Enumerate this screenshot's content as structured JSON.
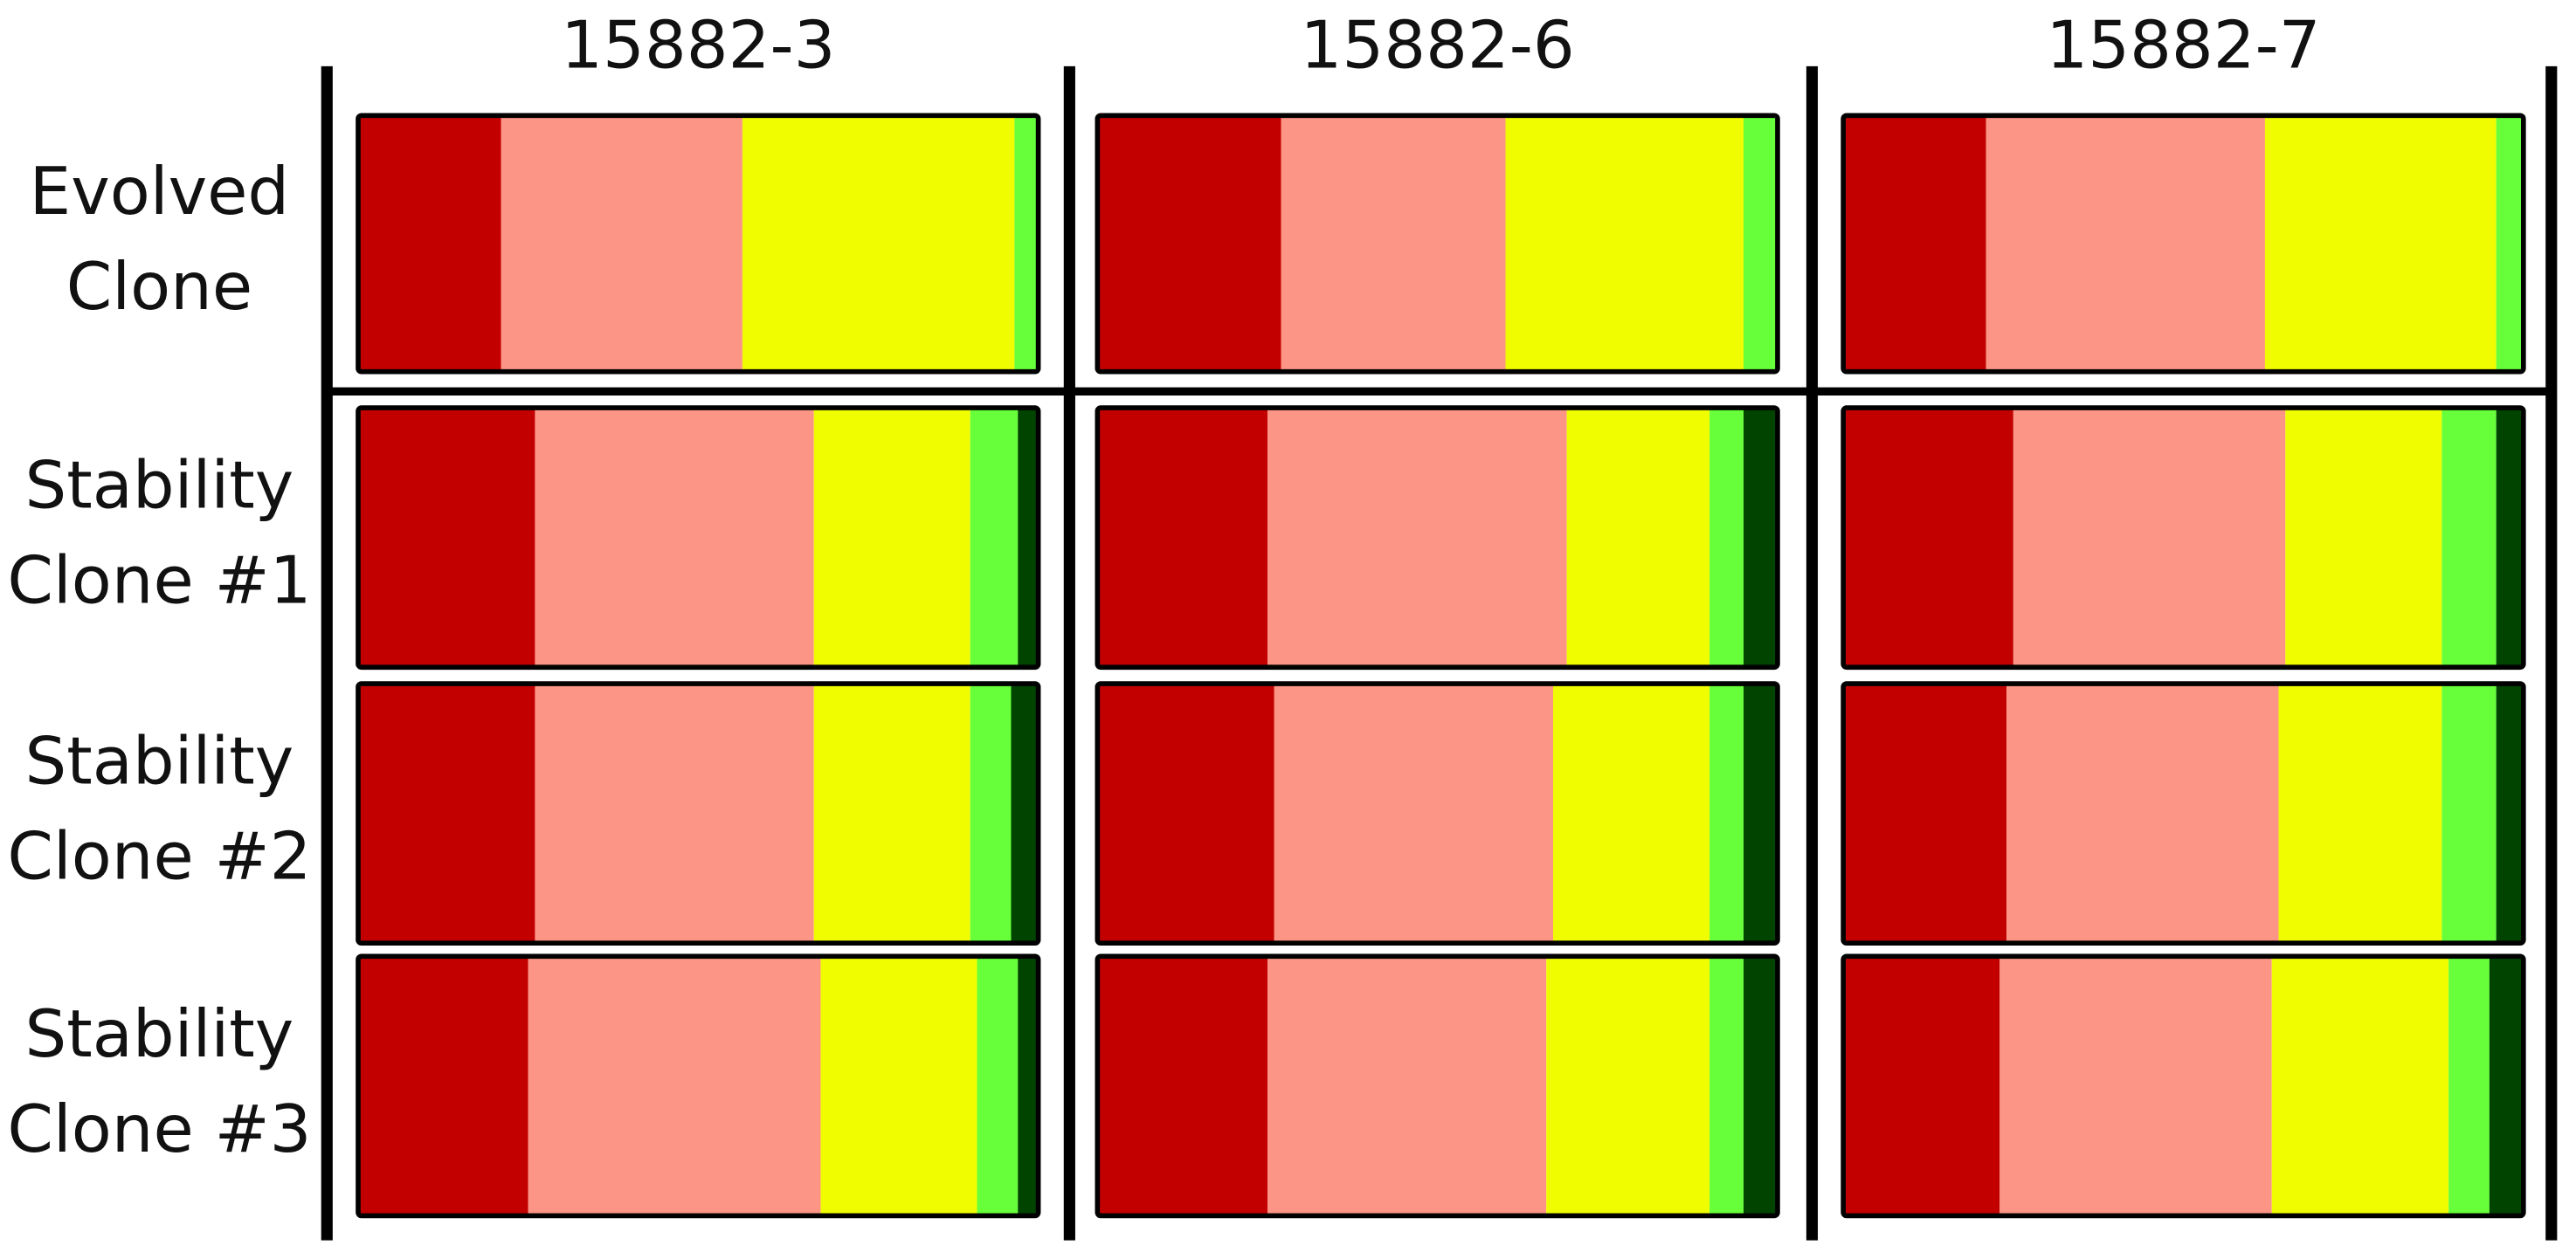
{
  "chart_data": {
    "type": "stacked-bar-grid",
    "columns": [
      "15882-3",
      "15882-6",
      "15882-7"
    ],
    "rows": [
      [
        "Evolved",
        "Clone"
      ],
      [
        "Stability",
        "Clone #1"
      ],
      [
        "Stability",
        "Clone #2"
      ],
      [
        "Stability",
        "Clone #3"
      ]
    ],
    "colors": [
      "#c30000",
      "#fc9585",
      "#f0fc00",
      "#66ff3a",
      "#004400"
    ],
    "values": [
      [
        [
          21,
          35.5,
          40,
          3.5,
          0
        ],
        [
          27,
          33,
          35,
          5,
          0
        ],
        [
          21,
          41,
          34,
          4,
          0
        ]
      ],
      [
        [
          26,
          41,
          23,
          7,
          3
        ],
        [
          25,
          44,
          21,
          5,
          5
        ],
        [
          25,
          40,
          23,
          8,
          4
        ]
      ],
      [
        [
          26,
          41,
          23,
          6,
          4
        ],
        [
          26,
          41,
          23,
          5,
          5
        ],
        [
          24,
          40,
          24,
          8,
          4
        ]
      ],
      [
        [
          25,
          43,
          23,
          6,
          3
        ],
        [
          25,
          41,
          24,
          5,
          5
        ],
        [
          23,
          40,
          26,
          6,
          5
        ]
      ]
    ]
  }
}
